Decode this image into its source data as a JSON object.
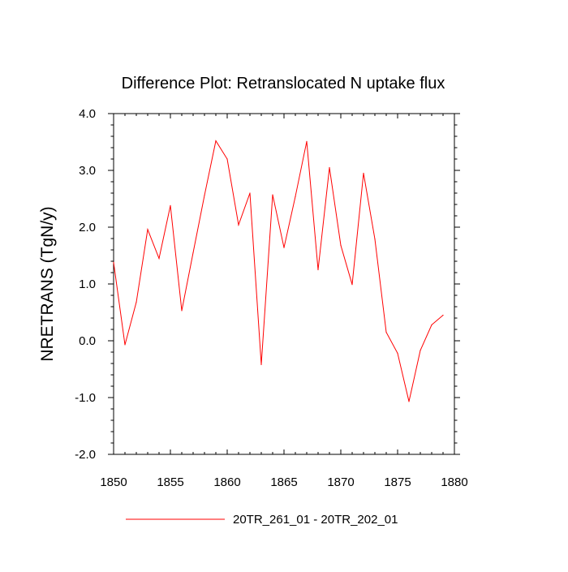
{
  "chart_data": {
    "type": "line",
    "title": "Difference Plot: Retranslocated N uptake flux",
    "xlabel": "",
    "ylabel": "NRETRANS  (TgN/y)",
    "xlim": [
      1850,
      1880
    ],
    "ylim": [
      -2.0,
      4.0
    ],
    "xticks": [
      1850,
      1855,
      1860,
      1865,
      1870,
      1875,
      1880
    ],
    "xtick_labels": [
      "1850",
      "1855",
      "1860",
      "1865",
      "1870",
      "1875",
      "1880"
    ],
    "yticks": [
      -2.0,
      -1.0,
      0.0,
      1.0,
      2.0,
      3.0,
      4.0
    ],
    "ytick_labels": [
      "-2.0",
      "-1.0",
      "0.0",
      "1.0",
      "2.0",
      "3.0",
      "4.0"
    ],
    "grid": false,
    "legend_position": "bottom-center",
    "series": [
      {
        "name": "20TR_261_01 - 20TR_202_01",
        "color": "#ff0000",
        "x": [
          1850,
          1851,
          1852,
          1853,
          1854,
          1855,
          1856,
          1857,
          1858,
          1859,
          1860,
          1861,
          1862,
          1863,
          1864,
          1865,
          1866,
          1867,
          1868,
          1869,
          1870,
          1871,
          1872,
          1873,
          1874,
          1875,
          1876,
          1877,
          1878,
          1879
        ],
        "values": [
          1.38,
          -0.07,
          0.68,
          1.96,
          1.45,
          2.38,
          0.53,
          1.55,
          2.56,
          3.52,
          3.2,
          2.04,
          2.6,
          -0.42,
          2.57,
          1.64,
          2.54,
          3.51,
          1.25,
          3.05,
          1.68,
          0.99,
          2.95,
          1.79,
          0.15,
          -0.22,
          -1.07,
          -0.17,
          0.28,
          0.45
        ]
      }
    ]
  }
}
